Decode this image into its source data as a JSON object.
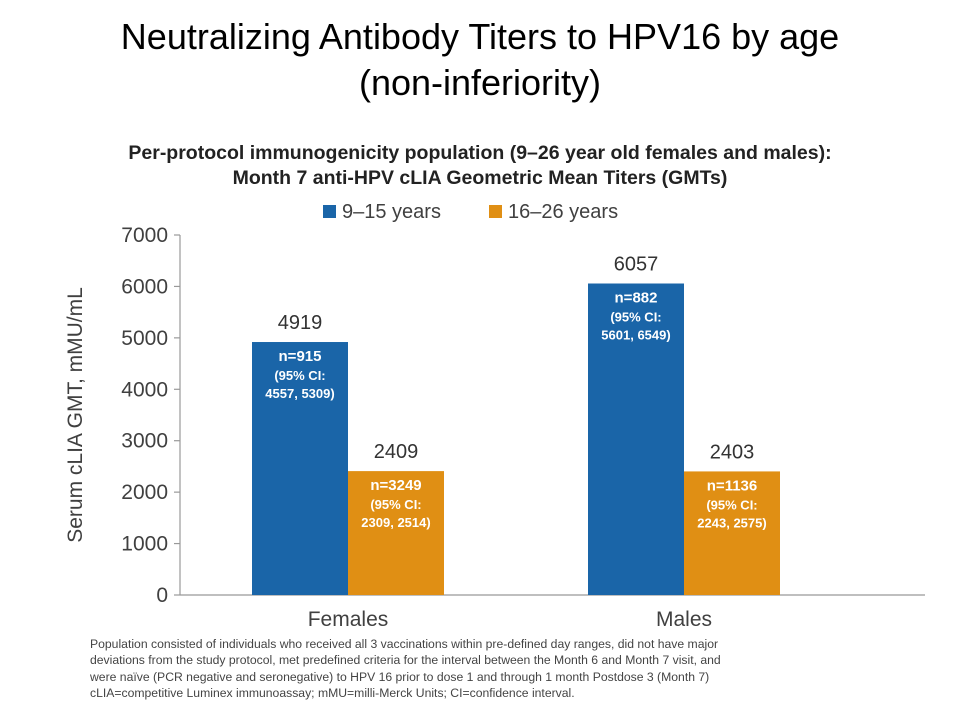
{
  "slide_title": {
    "line1": "Neutralizing Antibody Titers to HPV16 by age",
    "line2": "(non-inferiority)"
  },
  "colors": {
    "series_1": "#1a65a8",
    "series_2": "#e08f14",
    "axis": "#999999",
    "text": "#404040"
  },
  "chart_data": {
    "type": "bar",
    "title": "Per-protocol immunogenicity population (9–26 year old females and males):",
    "subtitle": "Month 7 anti-HPV cLIA Geometric Mean Titers (GMTs)",
    "categories": [
      "Females",
      "Males"
    ],
    "ylabel": "Serum cLIA GMT, mMU/mL",
    "ylim": [
      0,
      7000
    ],
    "yticks": [
      0,
      1000,
      2000,
      3000,
      4000,
      5000,
      6000,
      7000
    ],
    "grid": false,
    "legend_position": "top-center",
    "series": [
      {
        "name": "9–15 years",
        "values": [
          4919,
          6057
        ],
        "labels": [
          "4919",
          "6057"
        ],
        "n": [
          "n=915",
          "n=882"
        ],
        "ci_label": [
          "(95% CI:",
          "(95% CI:"
        ],
        "ci_values": [
          "4557, 5309)",
          "5601, 6549)"
        ]
      },
      {
        "name": "16–26 years",
        "values": [
          2409,
          2403
        ],
        "labels": [
          "2409",
          "2403"
        ],
        "n": [
          "n=3249",
          "n=1136"
        ],
        "ci_label": [
          "(95% CI:",
          "(95% CI:"
        ],
        "ci_values": [
          "2309, 2514)",
          "2243, 2575)"
        ]
      }
    ]
  },
  "footnote": {
    "line1": "Population consisted of individuals who received all 3 vaccinations within pre-defined day ranges, did not have major",
    "line2": "deviations from the study protocol, met predefined criteria for the interval between the Month 6 and Month 7 visit, and",
    "line3": "were naïve (PCR negative and seronegative) to HPV 16 prior to dose 1 and through 1 month Postdose 3 (Month 7)",
    "line4": "cLIA=competitive Luminex immunoassay; mMU=milli-Merck Units; CI=confidence interval."
  }
}
